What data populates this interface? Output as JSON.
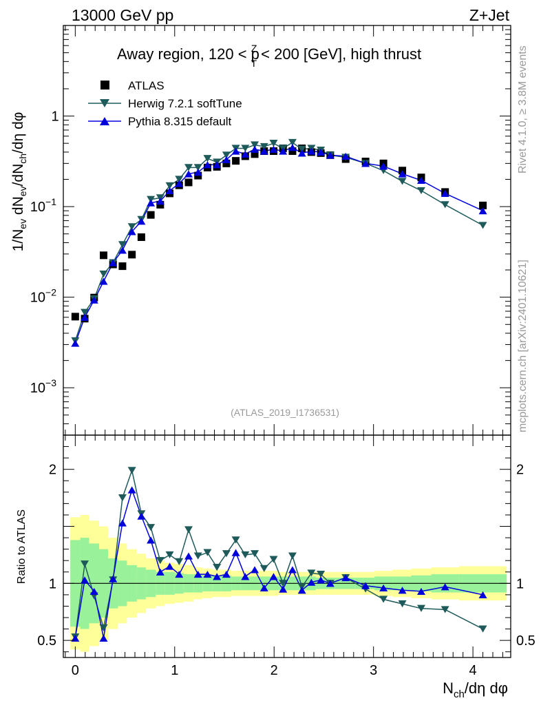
{
  "header": {
    "left": "13000 GeV pp",
    "right": "Z+Jet"
  },
  "title": {
    "prefix": "Away region, 120 < p",
    "sup": "Z",
    "sub": "T",
    "suffix": " < 200 [GeV], high thrust"
  },
  "side_labels": {
    "rivet": "Rivet 4.1.0, ≥ 3.8M events",
    "mcplots": "mcplots.cern.ch [arXiv:2401.10621]"
  },
  "watermark": "(ATLAS_2019_I1736531)",
  "legend": [
    {
      "key": "atlas",
      "label": "ATLAS"
    },
    {
      "key": "herwig",
      "label": "Herwig 7.2.1 softTune"
    },
    {
      "key": "pythia",
      "label": "Pythia 8.315 default"
    }
  ],
  "colors": {
    "atlas": "#000000",
    "herwig": "#1e5a5a",
    "pythia": "#0000dd",
    "band_inner": "#99f299",
    "band_outer": "#ffff99"
  },
  "chart_data": {
    "type": "scatter",
    "main": {
      "ylabel": "1/N_ev dN_ev/dN_ch/dη dφ",
      "yscale": "log",
      "ylim": [
        0.0003,
        10
      ],
      "ytick_labels": [
        {
          "base": "10",
          "exp": "−3",
          "value": 0.001
        },
        {
          "base": "10",
          "exp": "−2",
          "value": 0.01
        },
        {
          "base": "10",
          "exp": "−1",
          "value": 0.1
        },
        {
          "base": "1",
          "exp": "",
          "value": 1
        }
      ]
    },
    "ratio": {
      "ylabel": "Ratio to ATLAS",
      "ylim": [
        0.35,
        2.3
      ],
      "ytick_labels": [
        {
          "label": "0.5",
          "value": 0.5
        },
        {
          "label": "1",
          "value": 1
        },
        {
          "label": "2",
          "value": 2
        }
      ]
    },
    "xlabel": {
      "pre": "N",
      "sub": "ch",
      "post": "/dη dφ"
    },
    "xlim": [
      -0.12,
      4.38
    ],
    "xtick_labels": [
      "0",
      "1",
      "2",
      "3",
      "4"
    ],
    "x": [
      0.0,
      0.095,
      0.19,
      0.285,
      0.38,
      0.475,
      0.57,
      0.665,
      0.76,
      0.855,
      0.95,
      1.045,
      1.14,
      1.235,
      1.33,
      1.425,
      1.52,
      1.615,
      1.71,
      1.805,
      1.9,
      1.995,
      2.09,
      2.185,
      2.28,
      2.375,
      2.47,
      2.565,
      2.72,
      2.92,
      3.1,
      3.29,
      3.48,
      3.72,
      4.1
    ],
    "series": [
      {
        "name": "ATLAS",
        "values": [
          0.0061,
          0.0058,
          0.0099,
          0.029,
          0.023,
          0.022,
          0.0295,
          0.046,
          0.081,
          0.105,
          0.14,
          0.172,
          0.185,
          0.22,
          0.27,
          0.275,
          0.3,
          0.32,
          0.36,
          0.38,
          0.41,
          0.41,
          0.44,
          0.41,
          0.44,
          0.4,
          0.39,
          0.37,
          0.335,
          0.315,
          0.3,
          0.25,
          0.21,
          0.145,
          0.103
        ]
      },
      {
        "name": "Herwig 7.2.1 softTune",
        "values": [
          0.0033,
          0.0068,
          0.0096,
          0.018,
          0.024,
          0.038,
          0.06,
          0.072,
          0.12,
          0.125,
          0.17,
          0.2,
          0.27,
          0.27,
          0.34,
          0.31,
          0.37,
          0.44,
          0.44,
          0.48,
          0.46,
          0.5,
          0.44,
          0.51,
          0.43,
          0.44,
          0.42,
          0.37,
          0.35,
          0.3,
          0.25,
          0.19,
          0.15,
          0.105,
          0.062
        ]
      },
      {
        "name": "Pythia 8.315 default",
        "values": [
          0.0031,
          0.006,
          0.0093,
          0.015,
          0.024,
          0.033,
          0.053,
          0.069,
          0.11,
          0.115,
          0.15,
          0.18,
          0.23,
          0.24,
          0.29,
          0.29,
          0.33,
          0.41,
          0.38,
          0.43,
          0.41,
          0.43,
          0.41,
          0.45,
          0.39,
          0.41,
          0.4,
          0.37,
          0.36,
          0.3,
          0.28,
          0.23,
          0.195,
          0.14,
          0.09
        ]
      }
    ],
    "ratios": [
      {
        "name": "Herwig 7.2.1 softTune",
        "values": [
          0.53,
          1.17,
          0.89,
          0.61,
          1.03,
          1.75,
          1.99,
          1.61,
          1.49,
          1.2,
          1.25,
          1.19,
          1.47,
          1.24,
          1.27,
          1.14,
          1.26,
          1.38,
          1.25,
          1.26,
          1.13,
          1.21,
          1.0,
          1.24,
          0.97,
          1.09,
          1.08,
          1.0,
          1.05,
          0.95,
          0.86,
          0.82,
          0.78,
          0.77,
          0.6
        ]
      },
      {
        "name": "Pythia 8.315 default",
        "values": [
          0.52,
          1.03,
          0.93,
          0.52,
          1.04,
          1.53,
          1.82,
          1.59,
          1.38,
          1.1,
          1.15,
          1.08,
          1.24,
          1.08,
          1.08,
          1.06,
          1.08,
          1.27,
          1.06,
          1.12,
          0.96,
          1.06,
          0.95,
          1.12,
          0.94,
          1.01,
          1.03,
          1.0,
          1.05,
          0.98,
          0.96,
          0.94,
          0.93,
          0.97,
          0.9
        ]
      }
    ],
    "band_edges": [
      -0.05,
      0.05,
      0.14,
      0.24,
      0.33,
      0.43,
      0.52,
      0.62,
      0.71,
      0.81,
      0.9,
      1.0,
      1.09,
      1.19,
      1.28,
      1.38,
      1.47,
      1.57,
      1.66,
      1.76,
      1.85,
      1.95,
      2.04,
      2.14,
      2.23,
      2.33,
      2.42,
      2.52,
      2.61,
      2.81,
      3.01,
      3.19,
      3.38,
      3.58,
      3.86,
      4.34
    ],
    "band_inner": [
      0.62,
      0.6,
      0.65,
      0.7,
      0.78,
      0.8,
      0.84,
      0.86,
      0.88,
      0.9,
      0.9,
      0.91,
      0.92,
      0.92,
      0.93,
      0.93,
      0.93,
      0.94,
      0.94,
      0.94,
      0.94,
      0.94,
      0.94,
      0.94,
      0.94,
      0.94,
      0.95,
      0.95,
      0.95,
      0.95,
      0.94,
      0.94,
      0.93,
      0.92,
      0.92
    ],
    "band_outer": [
      0.42,
      0.4,
      0.45,
      0.5,
      0.6,
      0.65,
      0.7,
      0.74,
      0.78,
      0.8,
      0.82,
      0.83,
      0.84,
      0.86,
      0.87,
      0.88,
      0.88,
      0.89,
      0.89,
      0.89,
      0.89,
      0.89,
      0.9,
      0.9,
      0.9,
      0.9,
      0.9,
      0.9,
      0.9,
      0.9,
      0.89,
      0.88,
      0.87,
      0.86,
      0.85
    ]
  }
}
